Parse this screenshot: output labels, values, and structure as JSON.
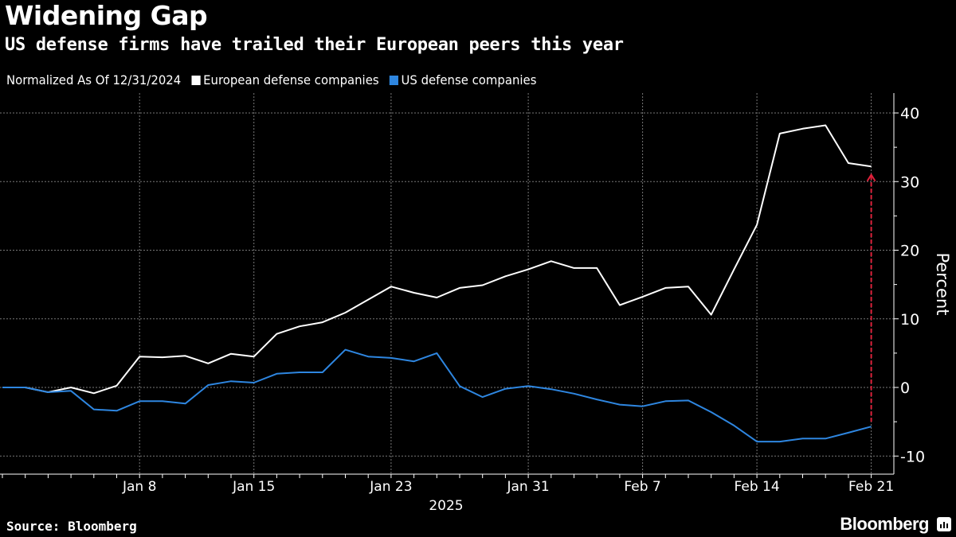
{
  "header": {
    "title": "Widening Gap",
    "subtitle": "US defense firms have trailed their European peers this year"
  },
  "legend": {
    "note": "Normalized As Of 12/31/2024",
    "items": [
      {
        "label": "European defense companies",
        "color": "#ffffff"
      },
      {
        "label": "US defense companies",
        "color": "#2e86e0"
      }
    ]
  },
  "footer": {
    "source": "Source: Bloomberg",
    "logo": "Bloomberg"
  },
  "chart_data": {
    "type": "line",
    "title": "Widening Gap",
    "subtitle": "US defense firms have trailed their European peers this year",
    "xlabel": "2025",
    "ylabel": "Percent",
    "ylim": [
      -12,
      42
    ],
    "yticks": [
      -10,
      0,
      10,
      20,
      30,
      40
    ],
    "xtick_labels": [
      "Jan 8",
      "Jan 15",
      "Jan 23",
      "Jan 31",
      "Feb 7",
      "Feb 14",
      "Feb 21"
    ],
    "xtick_dates": [
      "2025-01-08",
      "2025-01-15",
      "2025-01-23",
      "2025-01-31",
      "2025-02-07",
      "2025-02-14",
      "2025-02-21"
    ],
    "grid": true,
    "legend_position": "top-left",
    "y_axis_side": "right",
    "x": [
      "2024-12-31",
      "2025-01-01",
      "2025-01-02",
      "2025-01-03",
      "2025-01-06",
      "2025-01-07",
      "2025-01-08",
      "2025-01-09",
      "2025-01-10",
      "2025-01-13",
      "2025-01-14",
      "2025-01-15",
      "2025-01-16",
      "2025-01-17",
      "2025-01-20",
      "2025-01-21",
      "2025-01-22",
      "2025-01-23",
      "2025-01-24",
      "2025-01-27",
      "2025-01-28",
      "2025-01-29",
      "2025-01-30",
      "2025-01-31",
      "2025-02-03",
      "2025-02-04",
      "2025-02-05",
      "2025-02-06",
      "2025-02-07",
      "2025-02-10",
      "2025-02-11",
      "2025-02-12",
      "2025-02-13",
      "2025-02-14",
      "2025-02-17",
      "2025-02-18",
      "2025-02-19",
      "2025-02-20",
      "2025-02-21"
    ],
    "series": [
      {
        "name": "European defense companies",
        "color": "#ffffff",
        "values": [
          0,
          0,
          -0.7,
          0,
          -0.85,
          0.25,
          4.5,
          4.4,
          4.6,
          3.5,
          4.9,
          4.5,
          7.8,
          8.9,
          9.5,
          10.9,
          12.8,
          14.7,
          13.8,
          13.1,
          14.5,
          14.9,
          16.2,
          17.2,
          18.4,
          17.4,
          17.4,
          12.0,
          13.2,
          14.5,
          14.7,
          10.6,
          17.2,
          23.7,
          37.0,
          37.7,
          38.2,
          32.7,
          32.2
        ]
      },
      {
        "name": "US defense companies",
        "color": "#2e86e0",
        "values": [
          0,
          0,
          -0.7,
          -0.5,
          -3.2,
          -3.4,
          -2.0,
          -2.0,
          -2.35,
          0.35,
          0.9,
          0.7,
          2.0,
          2.2,
          2.2,
          5.5,
          4.5,
          4.3,
          3.8,
          5.0,
          0.2,
          -1.4,
          -0.2,
          0.2,
          -0.25,
          -0.9,
          -1.75,
          -2.5,
          -2.75,
          -2.0,
          -1.9,
          -3.6,
          -5.55,
          -7.9,
          -7.9,
          -7.45,
          -7.45,
          -6.6,
          -5.7
        ]
      }
    ],
    "annotations": [
      {
        "type": "dashed-arrow",
        "date": "2025-02-21",
        "from": -5,
        "to": 31,
        "color": "#e0203a"
      }
    ]
  }
}
